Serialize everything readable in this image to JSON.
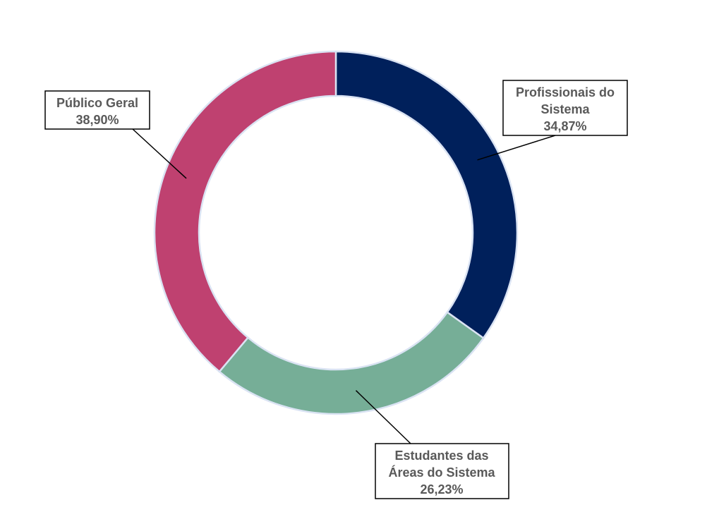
{
  "chart_data": {
    "type": "pie",
    "variant": "donut",
    "categories": [
      "Profissionais do Sistema",
      "Estudantes das Áreas do Sistema",
      "Público Geral"
    ],
    "values": [
      34.87,
      26.23,
      38.9
    ],
    "value_labels": [
      "34,87%",
      "26,23%",
      "38,90%"
    ],
    "colors": [
      "#00205B",
      "#76AE97",
      "#BF4170"
    ],
    "slice_border_color": "#DAE3F3",
    "data_labels": [
      {
        "lines": [
          "Profissionais do",
          "Sistema",
          "34,87%"
        ]
      },
      {
        "lines": [
          "Estudantes das",
          "Áreas do Sistema",
          "26,23%"
        ]
      },
      {
        "lines": [
          "Público Geral",
          "38,90%"
        ]
      }
    ],
    "label_color": "#595959",
    "legend": "none"
  }
}
